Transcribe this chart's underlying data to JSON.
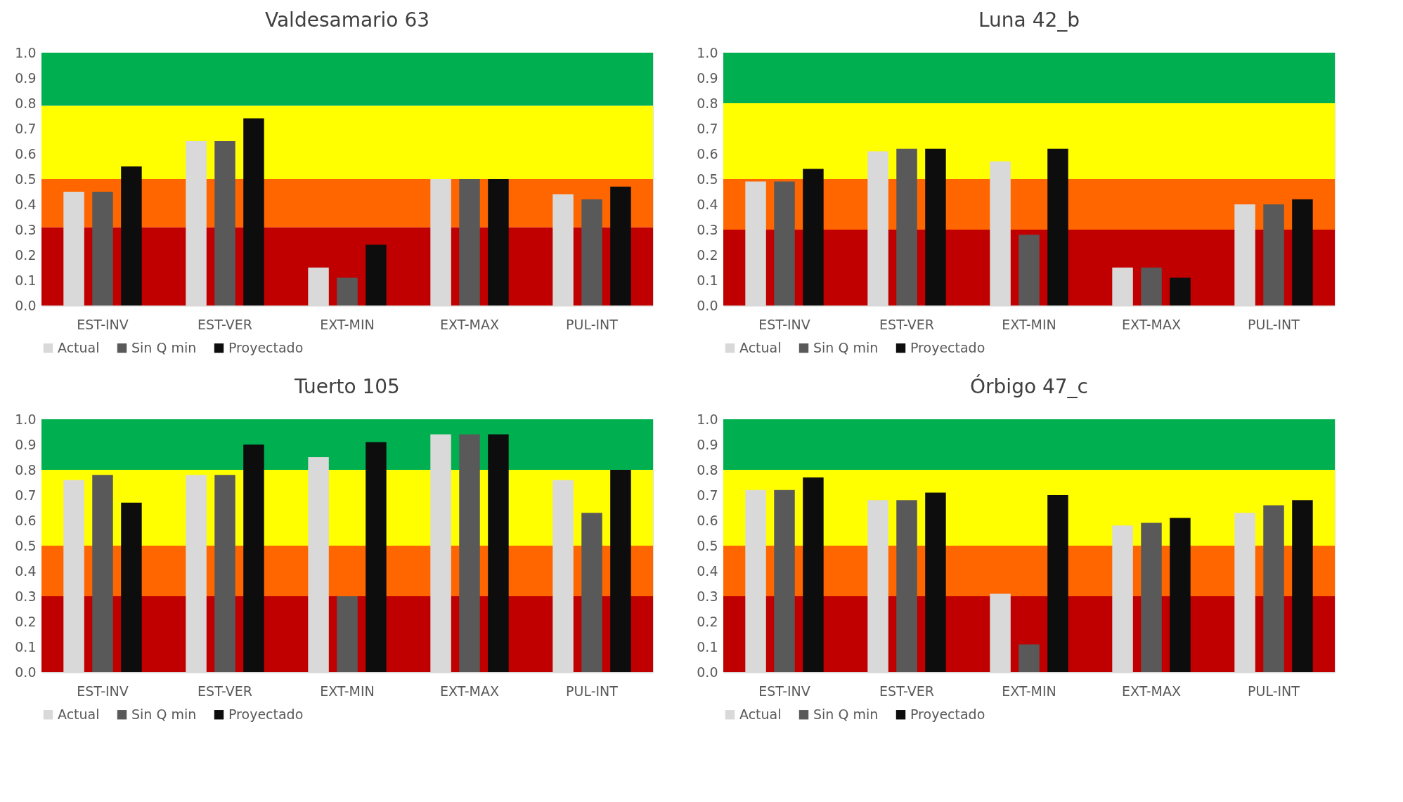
{
  "chart_data": [
    {
      "type": "bar",
      "title": "Valdesamario 63",
      "categories": [
        "EST-INV",
        "EST-VER",
        "EXT-MIN",
        "EXT-MAX",
        "PUL-INT"
      ],
      "ylim": [
        0,
        1.0
      ],
      "yticks": [
        {
          "value": 0,
          "label": "0.0"
        },
        {
          "value": 0.1,
          "label": "0.1"
        },
        {
          "value": 0.2,
          "label": "0.2"
        },
        {
          "value": 0.3,
          "label": "0.3"
        },
        {
          "value": 0.4,
          "label": "0.4"
        },
        {
          "value": 0.5,
          "label": "0.5"
        },
        {
          "value": 0.6,
          "label": "0.6"
        },
        {
          "value": 0.7,
          "label": "0.7"
        },
        {
          "value": 0.8,
          "label": "0.8"
        },
        {
          "value": 0.9,
          "label": "0.9"
        },
        {
          "value": 1.0,
          "label": "1.0"
        }
      ],
      "grid": false,
      "legend": "bottom",
      "series": [
        {
          "name": "Actual",
          "color": "#d9d9d9",
          "values": [
            0.45,
            0.65,
            0.15,
            0.5,
            0.44
          ]
        },
        {
          "name": "Sin Q min",
          "color": "#595959",
          "values": [
            0.45,
            0.65,
            0.11,
            0.5,
            0.42
          ]
        },
        {
          "name": "Proyectado",
          "color": "#0d0d0d",
          "values": [
            0.55,
            0.74,
            0.24,
            0.5,
            0.47
          ]
        }
      ],
      "bands": [
        {
          "axis": "y",
          "from": 0,
          "to": 0.31,
          "color": "#c00000"
        },
        {
          "axis": "y",
          "from": 0.31,
          "to": 0.5,
          "color": "#ff6600"
        },
        {
          "axis": "y",
          "from": 0.5,
          "to": 0.79,
          "color": "#ffff00"
        },
        {
          "axis": "y",
          "from": 0.79,
          "to": 1.0,
          "color": "#00b050"
        }
      ]
    },
    {
      "type": "bar",
      "title": "Luna 42_b",
      "categories": [
        "EST-INV",
        "EST-VER",
        "EXT-MIN",
        "EXT-MAX",
        "PUL-INT"
      ],
      "ylim": [
        0,
        1.0
      ],
      "yticks": [
        {
          "value": 0,
          "label": "0.0"
        },
        {
          "value": 0.1,
          "label": "0.1"
        },
        {
          "value": 0.2,
          "label": "0.2"
        },
        {
          "value": 0.3,
          "label": "0.3"
        },
        {
          "value": 0.4,
          "label": "0.4"
        },
        {
          "value": 0.5,
          "label": "0.5"
        },
        {
          "value": 0.6,
          "label": "0.6"
        },
        {
          "value": 0.7,
          "label": "0.7"
        },
        {
          "value": 0.8,
          "label": "0.8"
        },
        {
          "value": 0.9,
          "label": "0.9"
        },
        {
          "value": 1.0,
          "label": "1.0"
        }
      ],
      "grid": false,
      "legend": "bottom",
      "series": [
        {
          "name": "Actual",
          "color": "#d9d9d9",
          "values": [
            0.49,
            0.61,
            0.57,
            0.15,
            0.4
          ]
        },
        {
          "name": "Sin Q min",
          "color": "#595959",
          "values": [
            0.49,
            0.62,
            0.28,
            0.15,
            0.4
          ]
        },
        {
          "name": "Proyectado",
          "color": "#0d0d0d",
          "values": [
            0.54,
            0.62,
            0.62,
            0.11,
            0.42
          ]
        }
      ],
      "bands": [
        {
          "axis": "y",
          "from": 0,
          "to": 0.3,
          "color": "#c00000"
        },
        {
          "axis": "y",
          "from": 0.3,
          "to": 0.5,
          "color": "#ff6600"
        },
        {
          "axis": "y",
          "from": 0.5,
          "to": 0.8,
          "color": "#ffff00"
        },
        {
          "axis": "y",
          "from": 0.8,
          "to": 1.0,
          "color": "#00b050"
        }
      ]
    },
    {
      "type": "bar",
      "title": "Tuerto 105",
      "categories": [
        "EST-INV",
        "EST-VER",
        "EXT-MIN",
        "EXT-MAX",
        "PUL-INT"
      ],
      "ylim": [
        0,
        1.0
      ],
      "yticks": [
        {
          "value": 0,
          "label": "0.0"
        },
        {
          "value": 0.1,
          "label": "0.1"
        },
        {
          "value": 0.2,
          "label": "0.2"
        },
        {
          "value": 0.3,
          "label": "0.3"
        },
        {
          "value": 0.4,
          "label": "0.4"
        },
        {
          "value": 0.5,
          "label": "0.5"
        },
        {
          "value": 0.6,
          "label": "0.6"
        },
        {
          "value": 0.7,
          "label": "0.7"
        },
        {
          "value": 0.8,
          "label": "0.8"
        },
        {
          "value": 0.9,
          "label": "0.9"
        },
        {
          "value": 1.0,
          "label": "1.0"
        }
      ],
      "grid": false,
      "legend": "bottom",
      "series": [
        {
          "name": "Actual",
          "color": "#d9d9d9",
          "values": [
            0.76,
            0.78,
            0.85,
            0.94,
            0.76
          ]
        },
        {
          "name": "Sin Q min",
          "color": "#595959",
          "values": [
            0.78,
            0.78,
            0.3,
            0.94,
            0.63
          ]
        },
        {
          "name": "Proyectado",
          "color": "#0d0d0d",
          "values": [
            0.67,
            0.9,
            0.91,
            0.94,
            0.8
          ]
        }
      ],
      "bands": [
        {
          "axis": "y",
          "from": 0,
          "to": 0.3,
          "color": "#c00000"
        },
        {
          "axis": "y",
          "from": 0.3,
          "to": 0.5,
          "color": "#ff6600"
        },
        {
          "axis": "y",
          "from": 0.5,
          "to": 0.8,
          "color": "#ffff00"
        },
        {
          "axis": "y",
          "from": 0.8,
          "to": 1.0,
          "color": "#00b050"
        }
      ]
    },
    {
      "type": "bar",
      "title": "Órbigo 47_c",
      "categories": [
        "EST-INV",
        "EST-VER",
        "EXT-MIN",
        "EXT-MAX",
        "PUL-INT"
      ],
      "ylim": [
        0,
        1.0
      ],
      "yticks": [
        {
          "value": 0,
          "label": "0.0"
        },
        {
          "value": 0.1,
          "label": "0.1"
        },
        {
          "value": 0.2,
          "label": "0.2"
        },
        {
          "value": 0.3,
          "label": "0.3"
        },
        {
          "value": 0.4,
          "label": "0.4"
        },
        {
          "value": 0.5,
          "label": "0.5"
        },
        {
          "value": 0.6,
          "label": "0.6"
        },
        {
          "value": 0.7,
          "label": "0.7"
        },
        {
          "value": 0.8,
          "label": "0.8"
        },
        {
          "value": 0.9,
          "label": "0.9"
        },
        {
          "value": 1.0,
          "label": "1.0"
        }
      ],
      "grid": false,
      "legend": "bottom",
      "series": [
        {
          "name": "Actual",
          "color": "#d9d9d9",
          "values": [
            0.72,
            0.68,
            0.31,
            0.58,
            0.63
          ]
        },
        {
          "name": "Sin Q min",
          "color": "#595959",
          "values": [
            0.72,
            0.68,
            0.11,
            0.59,
            0.66
          ]
        },
        {
          "name": "Proyectado",
          "color": "#0d0d0d",
          "values": [
            0.77,
            0.71,
            0.7,
            0.61,
            0.68
          ]
        }
      ],
      "bands": [
        {
          "axis": "y",
          "from": 0,
          "to": 0.3,
          "color": "#c00000"
        },
        {
          "axis": "y",
          "from": 0.3,
          "to": 0.5,
          "color": "#ff6600"
        },
        {
          "axis": "y",
          "from": 0.5,
          "to": 0.8,
          "color": "#ffff00"
        },
        {
          "axis": "y",
          "from": 0.8,
          "to": 1.0,
          "color": "#00b050"
        }
      ]
    }
  ]
}
